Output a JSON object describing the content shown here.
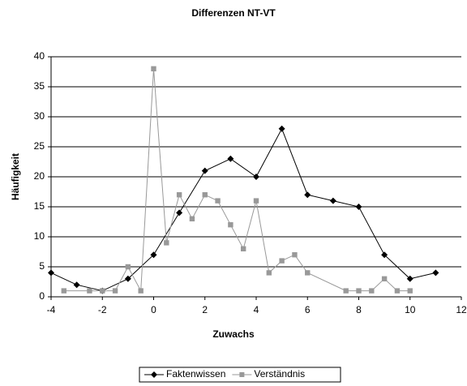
{
  "chart_data": {
    "type": "line",
    "title": "Differenzen NT-VT",
    "x_label": "Zuwachs",
    "y_label": "Häufigkeit",
    "xlim": [
      -4,
      12
    ],
    "xticks": [
      -4,
      -2,
      0,
      2,
      4,
      6,
      8,
      10,
      12
    ],
    "ylim": [
      0,
      40
    ],
    "yticks": [
      0,
      5,
      10,
      15,
      20,
      25,
      30,
      35,
      40
    ],
    "grid": true,
    "legend": "bottom",
    "series": [
      {
        "name": "Faktenwissen",
        "color": "#000000",
        "marker": "diamond",
        "x": [
          -4,
          -3,
          -2,
          -1,
          0,
          1,
          2,
          3,
          4,
          5,
          6,
          7,
          8,
          9,
          10,
          11
        ],
        "values": [
          4,
          2,
          1,
          3,
          7,
          14,
          21,
          23,
          20,
          28,
          17,
          16,
          15,
          7,
          3,
          4
        ]
      },
      {
        "name": "Verständnis",
        "color": "#999999",
        "marker": "square",
        "x": [
          -3.5,
          -2.5,
          -2,
          -1.5,
          -1,
          -0.5,
          0,
          0.5,
          1,
          1.5,
          2,
          2.5,
          3,
          3.5,
          4,
          4.5,
          5,
          5.5,
          6,
          7.5,
          8,
          8.5,
          9,
          9.5,
          10
        ],
        "values": [
          1,
          1,
          1,
          1,
          5,
          1,
          38,
          9,
          17,
          13,
          17,
          16,
          12,
          8,
          16,
          4,
          6,
          7,
          4,
          1,
          1,
          1,
          3,
          1,
          1
        ]
      }
    ]
  }
}
